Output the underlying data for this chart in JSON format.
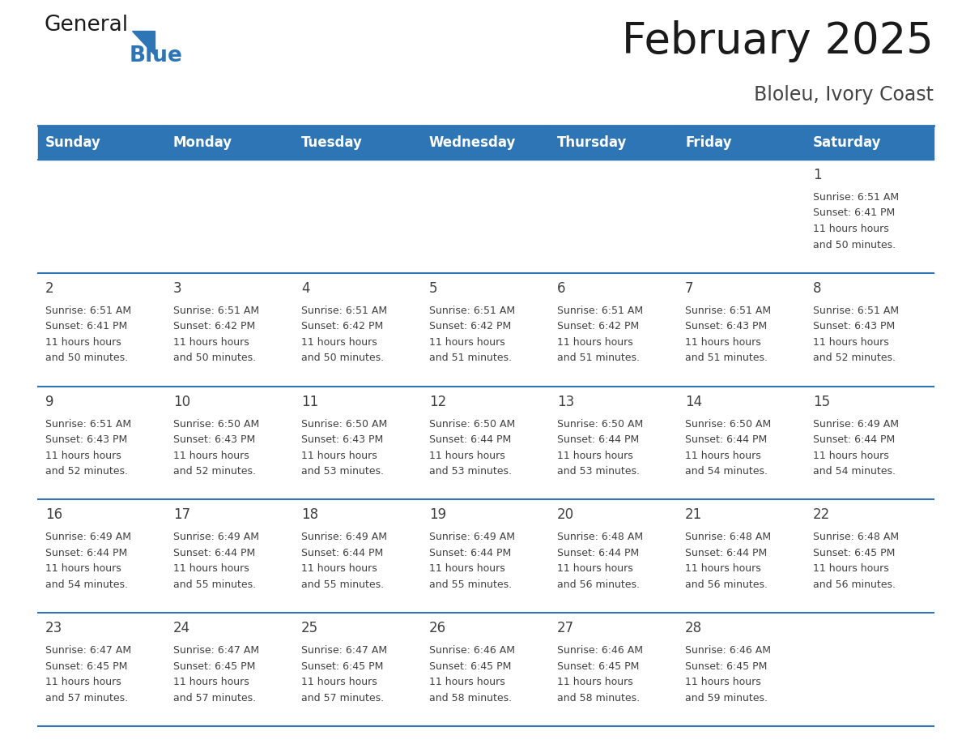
{
  "title": "February 2025",
  "subtitle": "Bloleu, Ivory Coast",
  "days_of_week": [
    "Sunday",
    "Monday",
    "Tuesday",
    "Wednesday",
    "Thursday",
    "Friday",
    "Saturday"
  ],
  "header_bg": "#2E75B6",
  "header_text": "#FFFFFF",
  "cell_bg": "#FFFFFF",
  "cell_text_color": "#404040",
  "divider_color": "#2E75B6",
  "calendar_data": [
    [
      null,
      null,
      null,
      null,
      null,
      null,
      {
        "day": 1,
        "sunrise": "6:51 AM",
        "sunset": "6:41 PM",
        "daylight": "11 hours and 50 minutes."
      }
    ],
    [
      {
        "day": 2,
        "sunrise": "6:51 AM",
        "sunset": "6:41 PM",
        "daylight": "11 hours and 50 minutes."
      },
      {
        "day": 3,
        "sunrise": "6:51 AM",
        "sunset": "6:42 PM",
        "daylight": "11 hours and 50 minutes."
      },
      {
        "day": 4,
        "sunrise": "6:51 AM",
        "sunset": "6:42 PM",
        "daylight": "11 hours and 50 minutes."
      },
      {
        "day": 5,
        "sunrise": "6:51 AM",
        "sunset": "6:42 PM",
        "daylight": "11 hours and 51 minutes."
      },
      {
        "day": 6,
        "sunrise": "6:51 AM",
        "sunset": "6:42 PM",
        "daylight": "11 hours and 51 minutes."
      },
      {
        "day": 7,
        "sunrise": "6:51 AM",
        "sunset": "6:43 PM",
        "daylight": "11 hours and 51 minutes."
      },
      {
        "day": 8,
        "sunrise": "6:51 AM",
        "sunset": "6:43 PM",
        "daylight": "11 hours and 52 minutes."
      }
    ],
    [
      {
        "day": 9,
        "sunrise": "6:51 AM",
        "sunset": "6:43 PM",
        "daylight": "11 hours and 52 minutes."
      },
      {
        "day": 10,
        "sunrise": "6:50 AM",
        "sunset": "6:43 PM",
        "daylight": "11 hours and 52 minutes."
      },
      {
        "day": 11,
        "sunrise": "6:50 AM",
        "sunset": "6:43 PM",
        "daylight": "11 hours and 53 minutes."
      },
      {
        "day": 12,
        "sunrise": "6:50 AM",
        "sunset": "6:44 PM",
        "daylight": "11 hours and 53 minutes."
      },
      {
        "day": 13,
        "sunrise": "6:50 AM",
        "sunset": "6:44 PM",
        "daylight": "11 hours and 53 minutes."
      },
      {
        "day": 14,
        "sunrise": "6:50 AM",
        "sunset": "6:44 PM",
        "daylight": "11 hours and 54 minutes."
      },
      {
        "day": 15,
        "sunrise": "6:49 AM",
        "sunset": "6:44 PM",
        "daylight": "11 hours and 54 minutes."
      }
    ],
    [
      {
        "day": 16,
        "sunrise": "6:49 AM",
        "sunset": "6:44 PM",
        "daylight": "11 hours and 54 minutes."
      },
      {
        "day": 17,
        "sunrise": "6:49 AM",
        "sunset": "6:44 PM",
        "daylight": "11 hours and 55 minutes."
      },
      {
        "day": 18,
        "sunrise": "6:49 AM",
        "sunset": "6:44 PM",
        "daylight": "11 hours and 55 minutes."
      },
      {
        "day": 19,
        "sunrise": "6:49 AM",
        "sunset": "6:44 PM",
        "daylight": "11 hours and 55 minutes."
      },
      {
        "day": 20,
        "sunrise": "6:48 AM",
        "sunset": "6:44 PM",
        "daylight": "11 hours and 56 minutes."
      },
      {
        "day": 21,
        "sunrise": "6:48 AM",
        "sunset": "6:44 PM",
        "daylight": "11 hours and 56 minutes."
      },
      {
        "day": 22,
        "sunrise": "6:48 AM",
        "sunset": "6:45 PM",
        "daylight": "11 hours and 56 minutes."
      }
    ],
    [
      {
        "day": 23,
        "sunrise": "6:47 AM",
        "sunset": "6:45 PM",
        "daylight": "11 hours and 57 minutes."
      },
      {
        "day": 24,
        "sunrise": "6:47 AM",
        "sunset": "6:45 PM",
        "daylight": "11 hours and 57 minutes."
      },
      {
        "day": 25,
        "sunrise": "6:47 AM",
        "sunset": "6:45 PM",
        "daylight": "11 hours and 57 minutes."
      },
      {
        "day": 26,
        "sunrise": "6:46 AM",
        "sunset": "6:45 PM",
        "daylight": "11 hours and 58 minutes."
      },
      {
        "day": 27,
        "sunrise": "6:46 AM",
        "sunset": "6:45 PM",
        "daylight": "11 hours and 58 minutes."
      },
      {
        "day": 28,
        "sunrise": "6:46 AM",
        "sunset": "6:45 PM",
        "daylight": "11 hours and 59 minutes."
      },
      null
    ]
  ],
  "title_fontsize": 38,
  "subtitle_fontsize": 17,
  "day_number_fontsize": 12,
  "cell_text_fontsize": 9,
  "header_fontsize": 12
}
